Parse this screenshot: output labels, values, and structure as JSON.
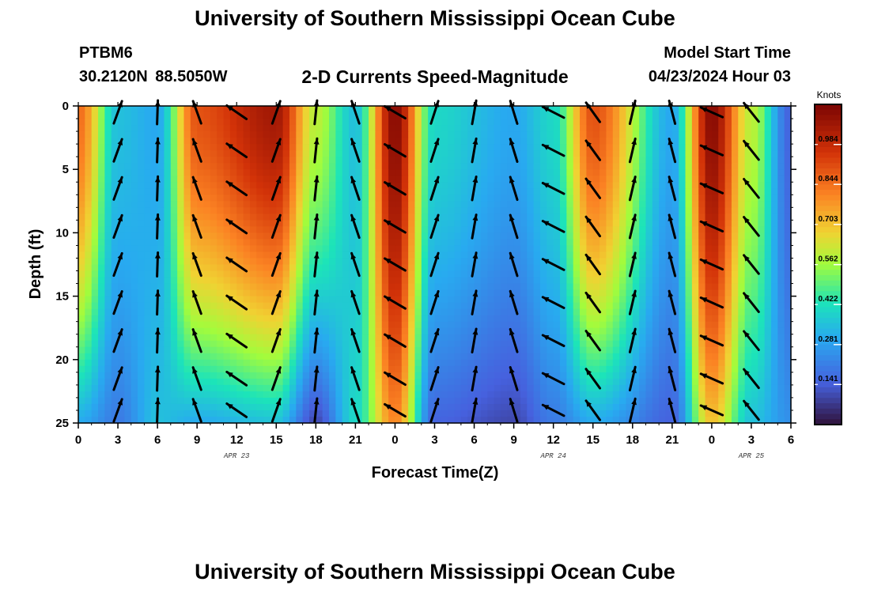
{
  "header": {
    "title": "University of Southern Mississippi Ocean Cube",
    "station": "PTBM6",
    "coordinates": "30.2120N  88.5050W",
    "subtitle": "2-D Currents Speed-Magnitude",
    "model_start_label": "Model Start Time",
    "model_start_value": "04/23/2024 Hour 03"
  },
  "footer": {
    "title": "University of Southern Mississippi Ocean Cube"
  },
  "chart_data": {
    "type": "heatmap",
    "title": "2-D Currents Speed-Magnitude",
    "xlabel": "Forecast Time(Z)",
    "ylabel": "Depth (ft)",
    "x_tick_labels": [
      "0",
      "3",
      "6",
      "9",
      "12",
      "15",
      "18",
      "21",
      "0",
      "3",
      "6",
      "9",
      "12",
      "15",
      "18",
      "21",
      "0",
      "3",
      "6"
    ],
    "x_hours": [
      0,
      54
    ],
    "date_labels": [
      {
        "label": "APR 23",
        "hour": 12
      },
      {
        "label": "APR 24",
        "hour": 36
      },
      {
        "label": "APR 25",
        "hour": 51
      }
    ],
    "y_ticks": [
      0,
      5,
      10,
      15,
      20,
      25
    ],
    "ylim": [
      0,
      25
    ],
    "colorbar": {
      "title": "Knots",
      "tick_labels": [
        "0.984",
        "0.844",
        "0.703",
        "0.562",
        "0.422",
        "0.281",
        "0.141"
      ],
      "range": [
        0.0,
        1.125
      ]
    },
    "speed_profile_knots": [
      {
        "hour": 0,
        "surface": 0.85,
        "bottom": 0.3
      },
      {
        "hour": 3,
        "surface": 0.35,
        "bottom": 0.2
      },
      {
        "hour": 6,
        "surface": 0.3,
        "bottom": 0.35
      },
      {
        "hour": 9,
        "surface": 0.9,
        "bottom": 0.3
      },
      {
        "hour": 15,
        "surface": 1.05,
        "bottom": 0.35
      },
      {
        "hour": 18,
        "surface": 0.6,
        "bottom": 0.1
      },
      {
        "hour": 21,
        "surface": 0.35,
        "bottom": 0.4
      },
      {
        "hour": 24,
        "surface": 1.1,
        "bottom": 0.8
      },
      {
        "hour": 27,
        "surface": 0.4,
        "bottom": 0.15
      },
      {
        "hour": 33,
        "surface": 0.3,
        "bottom": 0.1
      },
      {
        "hour": 36,
        "surface": 0.4,
        "bottom": 0.2
      },
      {
        "hour": 39,
        "surface": 0.9,
        "bottom": 0.3
      },
      {
        "hour": 45,
        "surface": 0.3,
        "bottom": 0.15
      },
      {
        "hour": 48,
        "surface": 1.1,
        "bottom": 0.7
      },
      {
        "hour": 51,
        "surface": 0.6,
        "bottom": 0.35
      },
      {
        "hour": 54,
        "surface": 0.15,
        "bottom": 0.25
      }
    ],
    "vector_depths_ft": [
      0.5,
      3.5,
      6.5,
      9.5,
      12.5,
      15.5,
      18.5,
      21.5,
      24
    ]
  }
}
